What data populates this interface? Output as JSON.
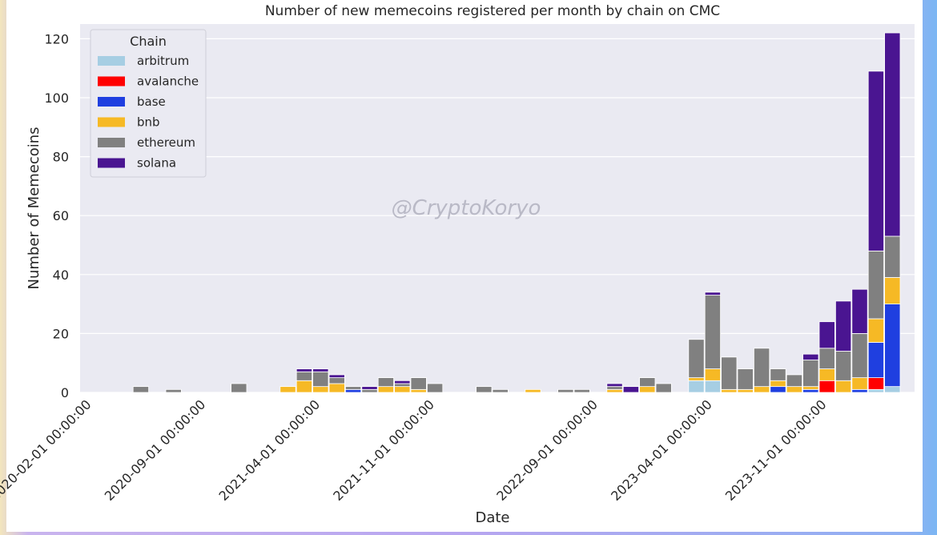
{
  "chart_data": {
    "type": "bar",
    "stacked": true,
    "title": "Number of new memecoins registered per month by chain on CMC",
    "xlabel": "Date",
    "ylabel": "Number of Memecoins",
    "ylim": [
      0,
      125
    ],
    "yticks": [
      0,
      20,
      40,
      60,
      80,
      100,
      120
    ],
    "grid": true,
    "legend": {
      "title": "Chain",
      "placement": "top-left"
    },
    "watermark": "@CryptoKoryo",
    "categories": [
      "2020-02",
      "2020-03",
      "2020-04",
      "2020-05",
      "2020-06",
      "2020-07",
      "2020-08",
      "2020-09",
      "2020-10",
      "2020-11",
      "2020-12",
      "2021-01",
      "2021-02",
      "2021-03",
      "2021-04",
      "2021-05",
      "2021-06",
      "2021-07",
      "2021-08",
      "2021-09",
      "2021-10",
      "2021-11",
      "2021-12",
      "2022-01",
      "2022-02",
      "2022-03",
      "2022-04",
      "2022-05",
      "2022-06",
      "2022-07",
      "2022-08",
      "2022-09",
      "2022-10",
      "2022-11",
      "2022-12",
      "2023-01",
      "2023-02",
      "2023-03",
      "2023-04",
      "2023-05",
      "2023-06",
      "2023-07",
      "2023-08",
      "2023-09",
      "2023-10",
      "2023-11",
      "2023-12",
      "2024-01",
      "2024-02",
      "2024-03"
    ],
    "xtick_labels": [
      {
        "category": "2020-02",
        "label": "2020-02-01 00:00:00"
      },
      {
        "category": "2020-09",
        "label": "2020-09-01 00:00:00"
      },
      {
        "category": "2021-04",
        "label": "2021-04-01 00:00:00"
      },
      {
        "category": "2021-11",
        "label": "2021-11-01 00:00:00"
      },
      {
        "category": "2022-09",
        "label": "2022-09-01 00:00:00"
      },
      {
        "category": "2023-04",
        "label": "2023-04-01 00:00:00"
      },
      {
        "category": "2023-11",
        "label": "2023-11-01 00:00:00"
      }
    ],
    "series": [
      {
        "name": "arbitrum",
        "color": "#a6cee3",
        "values": [
          0,
          0,
          0,
          0,
          0,
          0,
          0,
          0,
          0,
          0,
          0,
          0,
          0,
          0,
          0,
          0,
          0,
          0,
          0,
          0,
          0,
          0,
          0,
          0,
          0,
          0,
          0,
          0,
          0,
          0,
          0,
          0,
          0,
          0,
          0,
          0,
          0,
          4,
          4,
          0,
          0,
          0,
          0,
          0,
          0,
          0,
          0,
          0,
          1,
          2
        ]
      },
      {
        "name": "avalanche",
        "color": "#ff0000",
        "values": [
          0,
          0,
          0,
          0,
          0,
          0,
          0,
          0,
          0,
          0,
          0,
          0,
          0,
          0,
          0,
          0,
          0,
          0,
          0,
          0,
          0,
          0,
          0,
          0,
          0,
          0,
          0,
          0,
          0,
          0,
          0,
          0,
          0,
          0,
          0,
          0,
          0,
          0,
          0,
          0,
          0,
          0,
          0,
          0,
          0,
          4,
          0,
          0,
          4,
          0
        ]
      },
      {
        "name": "base",
        "color": "#1f3fe0",
        "values": [
          0,
          0,
          0,
          0,
          0,
          0,
          0,
          0,
          0,
          0,
          0,
          0,
          0,
          0,
          0,
          0,
          1,
          0,
          0,
          0,
          0,
          0,
          0,
          0,
          0,
          0,
          0,
          0,
          0,
          0,
          0,
          0,
          0,
          0,
          0,
          0,
          0,
          0,
          0,
          0,
          0,
          0,
          2,
          0,
          1,
          0,
          0,
          1,
          12,
          28
        ]
      },
      {
        "name": "bnb",
        "color": "#f6b925",
        "values": [
          0,
          0,
          0,
          0,
          0,
          0,
          0,
          0,
          0,
          0,
          0,
          0,
          2,
          4,
          2,
          3,
          0,
          0,
          2,
          2,
          1,
          0,
          0,
          0,
          0,
          0,
          0,
          1,
          0,
          0,
          0,
          0,
          1,
          0,
          2,
          0,
          0,
          1,
          4,
          1,
          1,
          2,
          2,
          2,
          1,
          4,
          4,
          4,
          8,
          9
        ]
      },
      {
        "name": "ethereum",
        "color": "#808080",
        "values": [
          0,
          0,
          0,
          2,
          0,
          1,
          0,
          0,
          0,
          3,
          0,
          0,
          0,
          3,
          5,
          2,
          1,
          1,
          3,
          1,
          4,
          3,
          0,
          0,
          2,
          1,
          0,
          0,
          0,
          1,
          1,
          0,
          1,
          0,
          3,
          3,
          0,
          13,
          25,
          11,
          7,
          13,
          4,
          4,
          9,
          7,
          10,
          15,
          23,
          14
        ]
      },
      {
        "name": "solana",
        "color": "#4a1591",
        "values": [
          0,
          0,
          0,
          0,
          0,
          0,
          0,
          0,
          0,
          0,
          0,
          0,
          0,
          1,
          1,
          1,
          0,
          1,
          0,
          1,
          0,
          0,
          0,
          0,
          0,
          0,
          0,
          0,
          0,
          0,
          0,
          0,
          1,
          2,
          0,
          0,
          0,
          0,
          1,
          0,
          0,
          0,
          0,
          0,
          2,
          9,
          17,
          15,
          61,
          69
        ]
      }
    ]
  }
}
